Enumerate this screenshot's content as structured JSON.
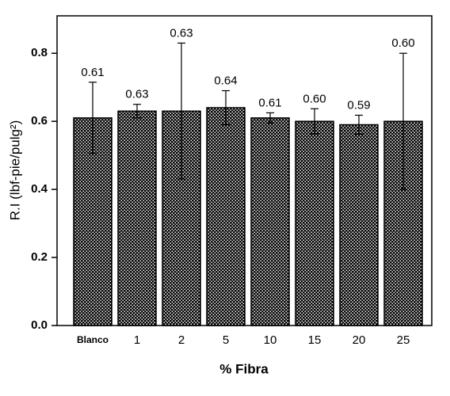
{
  "chart_data": {
    "type": "bar",
    "x_label": "% Fibra",
    "y_label": "R.I (lbf-pie/pulg²)",
    "categories": [
      "Blanco",
      "1",
      "2",
      "5",
      "10",
      "15",
      "20",
      "25"
    ],
    "values": [
      0.61,
      0.63,
      0.63,
      0.64,
      0.61,
      0.6,
      0.59,
      0.6
    ],
    "value_labels": [
      "0.61",
      "0.63",
      "0.63",
      "0.64",
      "0.61",
      "0.60",
      "0.59",
      "0.60"
    ],
    "errors": [
      0.105,
      0.02,
      0.2,
      0.05,
      0.015,
      0.037,
      0.028,
      0.2
    ],
    "color": "#000000",
    "ylim": [
      0,
      0.91
    ],
    "yticks": [
      {
        "value": 0,
        "label": "0.0"
      },
      0.2,
      0.4,
      0.6,
      0.8
    ]
  }
}
